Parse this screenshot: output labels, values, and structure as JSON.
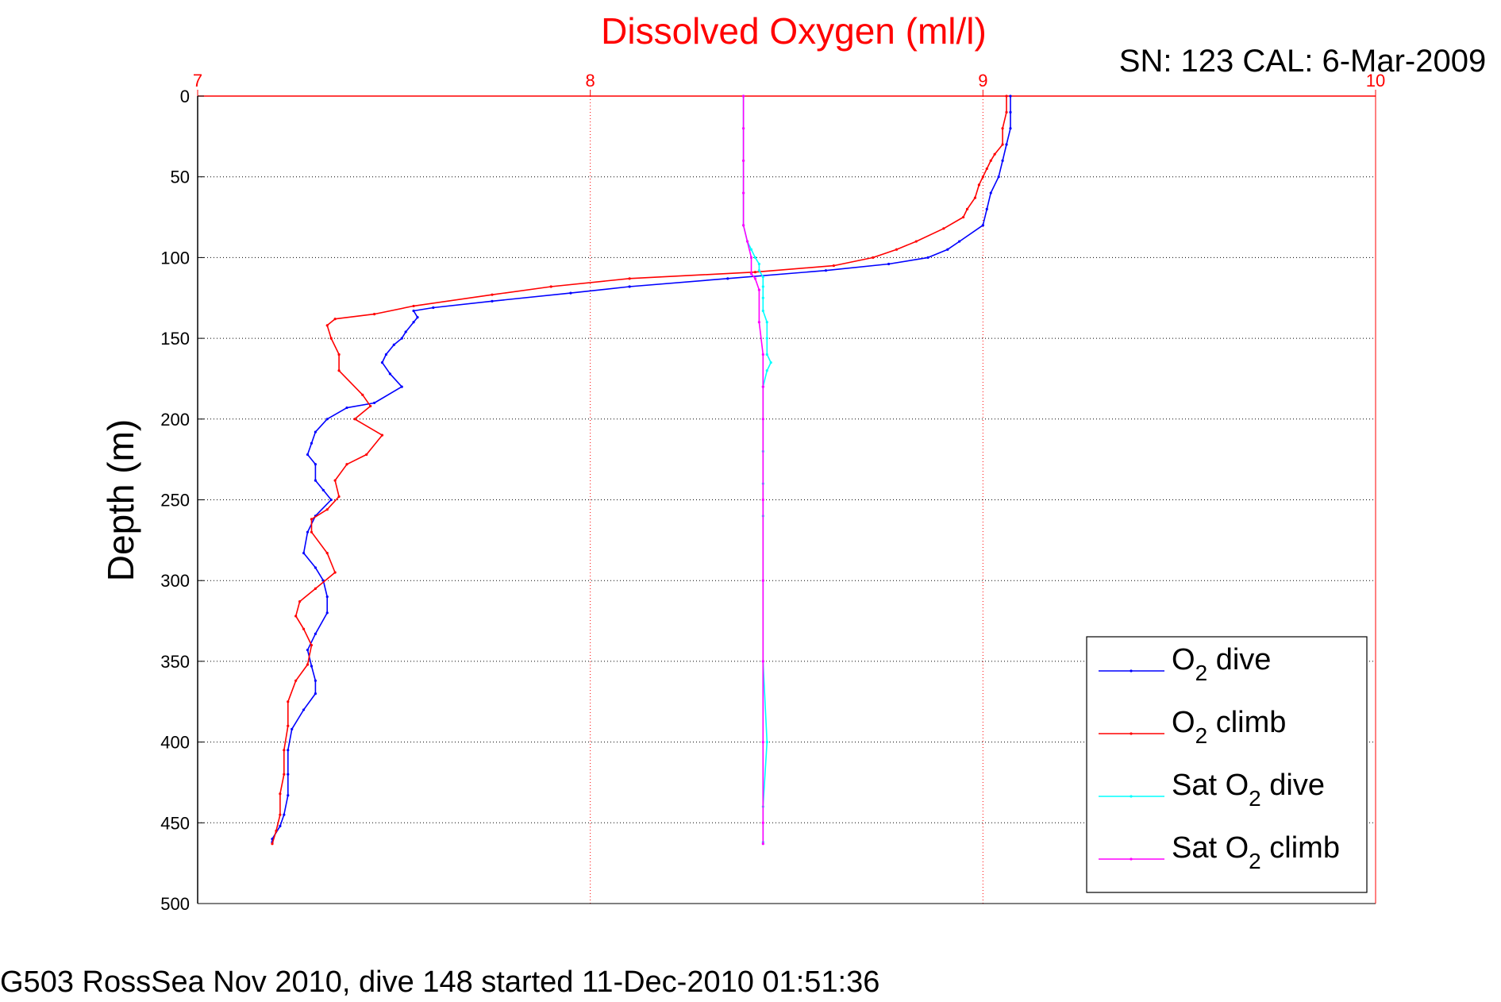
{
  "chart_data": {
    "type": "line",
    "title": "Dissolved Oxygen (ml/l)",
    "subtitle": "SN: 123  CAL: 6-Mar-2009",
    "ylabel": "Depth (m)",
    "xlabel": "",
    "xlim": [
      7,
      10
    ],
    "ylim": [
      500,
      0
    ],
    "y_reversed": true,
    "x_axis_position": "top",
    "x_ticks": [
      7,
      8,
      9,
      10
    ],
    "x_tick_labels": [
      "7",
      "8",
      "9",
      "10"
    ],
    "y_ticks": [
      0,
      50,
      100,
      150,
      200,
      250,
      300,
      350,
      400,
      450,
      500
    ],
    "y_tick_labels": [
      "0",
      "50",
      "100",
      "150",
      "200",
      "250",
      "300",
      "350",
      "400",
      "450",
      "500"
    ],
    "grid": true,
    "legend_position": "bottom-right",
    "series": [
      {
        "name": "dive",
        "legend_prefix": "O",
        "legend_sub": "2",
        "color": "#0000ff",
        "points": [
          [
            9.07,
            0
          ],
          [
            9.07,
            10
          ],
          [
            9.07,
            20
          ],
          [
            9.06,
            30
          ],
          [
            9.05,
            40
          ],
          [
            9.04,
            50
          ],
          [
            9.02,
            60
          ],
          [
            9.01,
            70
          ],
          [
            9.0,
            80
          ],
          [
            8.94,
            90
          ],
          [
            8.91,
            95
          ],
          [
            8.86,
            100
          ],
          [
            8.76,
            104
          ],
          [
            8.6,
            108
          ],
          [
            8.35,
            113
          ],
          [
            8.1,
            118
          ],
          [
            7.95,
            122
          ],
          [
            7.75,
            127
          ],
          [
            7.6,
            131
          ],
          [
            7.55,
            133
          ],
          [
            7.56,
            137
          ],
          [
            7.55,
            140
          ],
          [
            7.53,
            146
          ],
          [
            7.52,
            150
          ],
          [
            7.5,
            154
          ],
          [
            7.48,
            160
          ],
          [
            7.47,
            165
          ],
          [
            7.49,
            172
          ],
          [
            7.52,
            180
          ],
          [
            7.45,
            190
          ],
          [
            7.38,
            193
          ],
          [
            7.33,
            200
          ],
          [
            7.3,
            208
          ],
          [
            7.29,
            215
          ],
          [
            7.28,
            222
          ],
          [
            7.3,
            228
          ],
          [
            7.3,
            238
          ],
          [
            7.32,
            244
          ],
          [
            7.34,
            250
          ],
          [
            7.3,
            260
          ],
          [
            7.28,
            270
          ],
          [
            7.27,
            283
          ],
          [
            7.3,
            292
          ],
          [
            7.32,
            300
          ],
          [
            7.33,
            310
          ],
          [
            7.33,
            320
          ],
          [
            7.3,
            333
          ],
          [
            7.28,
            343
          ],
          [
            7.29,
            353
          ],
          [
            7.3,
            362
          ],
          [
            7.3,
            370
          ],
          [
            7.27,
            380
          ],
          [
            7.24,
            392
          ],
          [
            7.23,
            405
          ],
          [
            7.23,
            420
          ],
          [
            7.23,
            433
          ],
          [
            7.22,
            445
          ],
          [
            7.21,
            452
          ],
          [
            7.19,
            460
          ],
          [
            7.19,
            462
          ]
        ]
      },
      {
        "name": "climb",
        "legend_prefix": "O",
        "legend_sub": "2",
        "color": "#ff0000",
        "points": [
          [
            9.06,
            0
          ],
          [
            9.06,
            10
          ],
          [
            9.05,
            20
          ],
          [
            9.05,
            30
          ],
          [
            9.03,
            36
          ],
          [
            9.02,
            40
          ],
          [
            9.01,
            45
          ],
          [
            9.0,
            50
          ],
          [
            8.99,
            55
          ],
          [
            8.98,
            63
          ],
          [
            8.96,
            70
          ],
          [
            8.95,
            75
          ],
          [
            8.9,
            82
          ],
          [
            8.83,
            90
          ],
          [
            8.78,
            95
          ],
          [
            8.72,
            100
          ],
          [
            8.62,
            105
          ],
          [
            8.42,
            109
          ],
          [
            8.1,
            113
          ],
          [
            7.9,
            118
          ],
          [
            7.75,
            123
          ],
          [
            7.55,
            130
          ],
          [
            7.45,
            135
          ],
          [
            7.35,
            138
          ],
          [
            7.33,
            142
          ],
          [
            7.34,
            150
          ],
          [
            7.36,
            160
          ],
          [
            7.36,
            170
          ],
          [
            7.42,
            185
          ],
          [
            7.44,
            192
          ],
          [
            7.4,
            200
          ],
          [
            7.47,
            210
          ],
          [
            7.43,
            222
          ],
          [
            7.38,
            228
          ],
          [
            7.35,
            238
          ],
          [
            7.36,
            248
          ],
          [
            7.33,
            256
          ],
          [
            7.29,
            262
          ],
          [
            7.29,
            270
          ],
          [
            7.33,
            283
          ],
          [
            7.35,
            295
          ],
          [
            7.3,
            305
          ],
          [
            7.26,
            313
          ],
          [
            7.25,
            322
          ],
          [
            7.27,
            330
          ],
          [
            7.29,
            340
          ],
          [
            7.28,
            352
          ],
          [
            7.25,
            362
          ],
          [
            7.23,
            375
          ],
          [
            7.23,
            390
          ],
          [
            7.22,
            405
          ],
          [
            7.22,
            420
          ],
          [
            7.21,
            432
          ],
          [
            7.21,
            445
          ],
          [
            7.2,
            455
          ],
          [
            7.19,
            463
          ]
        ]
      },
      {
        "name": "dive",
        "legend_prefix": "Sat O",
        "legend_sub": "2",
        "color": "#00ffff",
        "points": [
          [
            8.39,
            0
          ],
          [
            8.39,
            20
          ],
          [
            8.39,
            40
          ],
          [
            8.39,
            60
          ],
          [
            8.39,
            80
          ],
          [
            8.4,
            90
          ],
          [
            8.41,
            95
          ],
          [
            8.42,
            100
          ],
          [
            8.43,
            104
          ],
          [
            8.43,
            108
          ],
          [
            8.44,
            112
          ],
          [
            8.44,
            118
          ],
          [
            8.44,
            125
          ],
          [
            8.44,
            133
          ],
          [
            8.45,
            140
          ],
          [
            8.45,
            150
          ],
          [
            8.45,
            160
          ],
          [
            8.46,
            165
          ],
          [
            8.45,
            170
          ],
          [
            8.44,
            180
          ],
          [
            8.44,
            200
          ],
          [
            8.44,
            220
          ],
          [
            8.44,
            240
          ],
          [
            8.44,
            260
          ],
          [
            8.44,
            300
          ],
          [
            8.44,
            350
          ],
          [
            8.45,
            400
          ],
          [
            8.44,
            440
          ],
          [
            8.44,
            462
          ]
        ]
      },
      {
        "name": "climb",
        "legend_prefix": "Sat O",
        "legend_sub": "2",
        "color": "#ff00ff",
        "points": [
          [
            8.39,
            0
          ],
          [
            8.39,
            20
          ],
          [
            8.39,
            40
          ],
          [
            8.39,
            60
          ],
          [
            8.39,
            80
          ],
          [
            8.4,
            90
          ],
          [
            8.41,
            100
          ],
          [
            8.41,
            110
          ],
          [
            8.42,
            113
          ],
          [
            8.43,
            120
          ],
          [
            8.43,
            140
          ],
          [
            8.44,
            160
          ],
          [
            8.44,
            180
          ],
          [
            8.44,
            200
          ],
          [
            8.44,
            250
          ],
          [
            8.44,
            300
          ],
          [
            8.44,
            350
          ],
          [
            8.44,
            400
          ],
          [
            8.44,
            450
          ],
          [
            8.44,
            463
          ]
        ]
      }
    ]
  },
  "footer": "G503 RossSea Nov 2010, dive 148 started 11-Dec-2010 01:51:36",
  "colors": {
    "title": "#ff0000",
    "x_ticks": "#ff0000",
    "grid_x": "#ff0000",
    "grid_y": "#000000",
    "axes": "#000000"
  }
}
